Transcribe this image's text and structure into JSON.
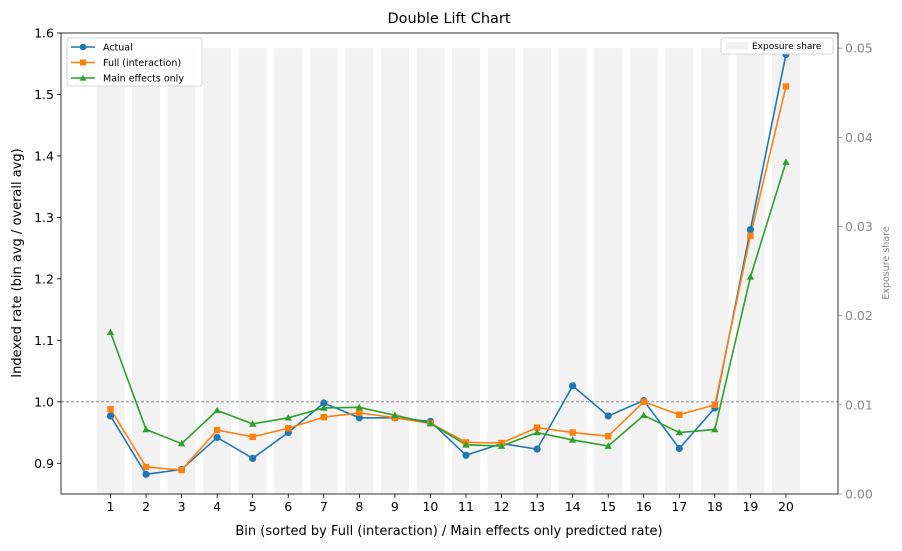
{
  "chart_data": {
    "type": "line",
    "title": "Double Lift Chart",
    "xlabel": "Bin (sorted by Full (interaction) / Main effects only predicted rate)",
    "ylabel": "Indexed rate (bin avg / overall avg)",
    "y2label": "Exposure share",
    "categories": [
      "1",
      "2",
      "3",
      "4",
      "5",
      "6",
      "7",
      "8",
      "9",
      "10",
      "11",
      "12",
      "13",
      "14",
      "15",
      "16",
      "17",
      "18",
      "19",
      "20"
    ],
    "ylim": [
      0.85,
      1.6
    ],
    "yticks": [
      "0.9",
      "1.0",
      "1.1",
      "1.2",
      "1.3",
      "1.4",
      "1.5",
      "1.6"
    ],
    "y2lim": [
      0,
      0.0517
    ],
    "y2ticks": [
      "0.00",
      "0.01",
      "0.02",
      "0.03",
      "0.04",
      "0.05"
    ],
    "reference_line": 1.0,
    "grid": false,
    "legend_position": "top-left",
    "bar_legend_position": "top-right",
    "series": [
      {
        "name": "Actual",
        "color": "#1f77b4",
        "marker": "circle",
        "values": [
          0.977,
          0.882,
          0.89,
          0.942,
          0.908,
          0.95,
          0.998,
          0.974,
          0.974,
          0.968,
          0.913,
          0.932,
          0.923,
          1.026,
          0.977,
          1.002,
          0.924,
          0.99,
          1.28,
          1.565
        ]
      },
      {
        "name": "Full (interaction)",
        "color": "#ff7f0e",
        "marker": "square",
        "values": [
          0.988,
          0.894,
          0.889,
          0.954,
          0.943,
          0.957,
          0.975,
          0.982,
          0.974,
          0.965,
          0.934,
          0.933,
          0.958,
          0.95,
          0.944,
          1.0,
          0.979,
          0.995,
          1.27,
          1.513
        ]
      },
      {
        "name": "Main effects only",
        "color": "#2ca02c",
        "marker": "triangle",
        "values": [
          1.113,
          0.955,
          0.932,
          0.986,
          0.964,
          0.974,
          0.99,
          0.991,
          0.978,
          0.965,
          0.93,
          0.928,
          0.95,
          0.938,
          0.928,
          0.978,
          0.95,
          0.955,
          1.203,
          1.39
        ]
      }
    ],
    "exposure": {
      "name": "Exposure share",
      "color": "#f2f2f2",
      "values": [
        0.05,
        0.05,
        0.05,
        0.05,
        0.05,
        0.05,
        0.05,
        0.05,
        0.05,
        0.05,
        0.05,
        0.05,
        0.05,
        0.05,
        0.05,
        0.05,
        0.05,
        0.05,
        0.05,
        0.05
      ]
    }
  }
}
